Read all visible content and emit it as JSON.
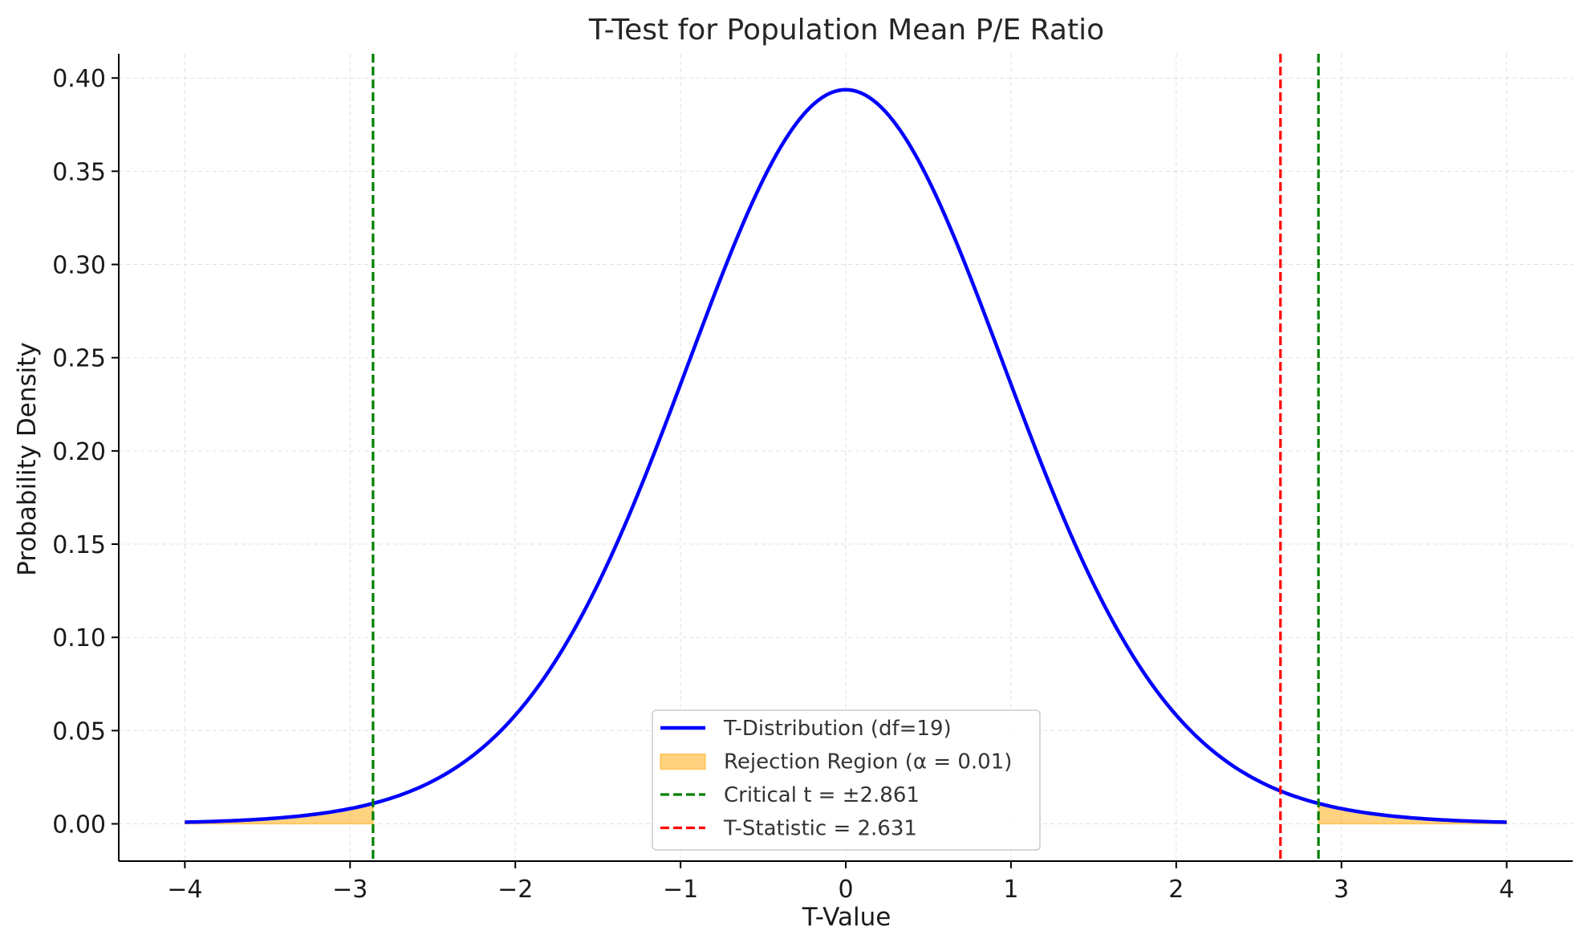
{
  "chart_data": {
    "type": "line",
    "title": "T-Test for Population Mean P/E Ratio",
    "xlabel": "T-Value",
    "ylabel": "Probability Density",
    "xlim": [
      -4.4,
      4.4
    ],
    "ylim": [
      -0.02,
      0.413
    ],
    "x_ticks": [
      -4,
      -3,
      -2,
      -1,
      0,
      1,
      2,
      3,
      4
    ],
    "x_tick_labels": [
      "−4",
      "−3",
      "−2",
      "−1",
      "0",
      "1",
      "2",
      "3",
      "4"
    ],
    "y_ticks": [
      0.0,
      0.05,
      0.1,
      0.15,
      0.2,
      0.25,
      0.3,
      0.35,
      0.4
    ],
    "y_tick_labels": [
      "0.00",
      "0.05",
      "0.10",
      "0.15",
      "0.20",
      "0.25",
      "0.30",
      "0.35",
      "0.40"
    ],
    "grid": true,
    "legend_position": "bottom-center",
    "distribution": {
      "name": "T-Distribution (df=19)",
      "df": 19,
      "x_range": [
        -4,
        4
      ],
      "color": "#0000ff"
    },
    "rejection_region": {
      "name": "Rejection Region (α = 0.01)",
      "alpha": 0.01,
      "left_x_range": [
        -4,
        -2.861
      ],
      "right_x_range": [
        2.861,
        4
      ],
      "fill_color": "#ffa500",
      "fill_opacity": 0.5
    },
    "critical_lines": {
      "name": "Critical t = ±2.861",
      "values": [
        -2.861,
        2.861
      ],
      "color": "#008000",
      "style": "dashed"
    },
    "t_statistic": {
      "name": "T-Statistic = 2.631",
      "value": 2.631,
      "color": "#ff0000",
      "style": "dashed"
    },
    "legend": [
      {
        "label": "T-Distribution (df=19)",
        "kind": "line",
        "color": "#0000ff"
      },
      {
        "label": "Rejection Region (α = 0.01)",
        "kind": "patch",
        "color": "#ffa500"
      },
      {
        "label": "Critical t = ±2.861",
        "kind": "dashed",
        "color": "#008000"
      },
      {
        "label": "T-Statistic = 2.631",
        "kind": "dashed",
        "color": "#ff0000"
      }
    ]
  }
}
